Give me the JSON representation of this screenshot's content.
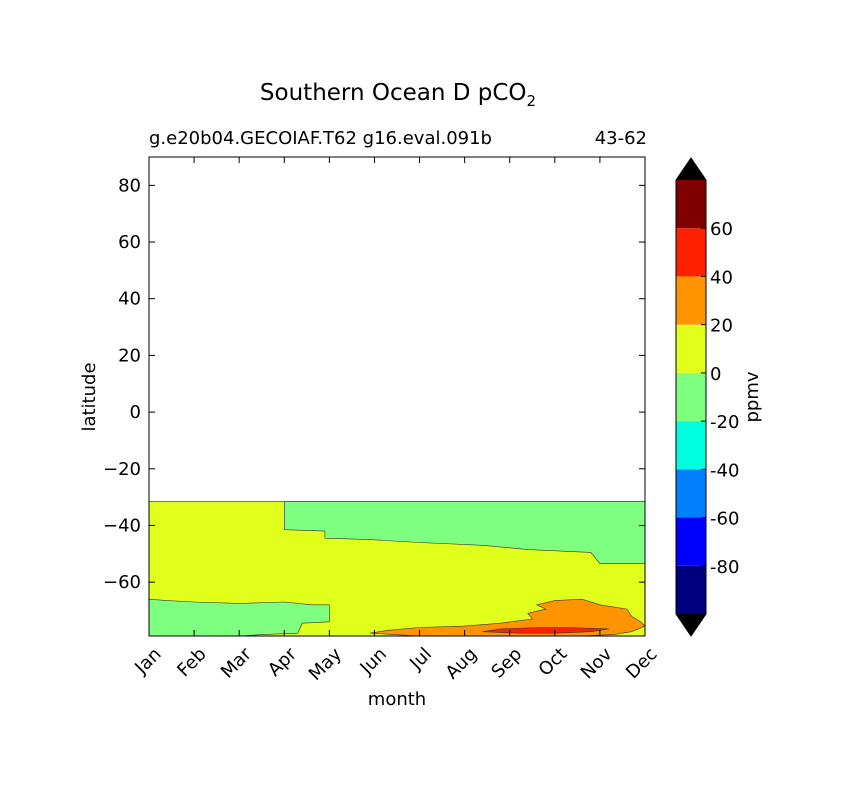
{
  "title_main": "Southern Ocean D pCO",
  "title_sub": "2",
  "subtitle_left": "g.e20b04.GECOIAF.T62 g16.eval.091b",
  "subtitle_right": "43-62",
  "chart_data": {
    "type": "heatmap",
    "xlabel": "month",
    "ylabel": "latitude",
    "x_categories": [
      "Jan",
      "Feb",
      "Mar",
      "Apr",
      "May",
      "Jun",
      "Jul",
      "Aug",
      "Sep",
      "Oct",
      "Nov",
      "Dec"
    ],
    "xlim": [
      1,
      12
    ],
    "ylim": [
      -79,
      90
    ],
    "y_ticks": [
      80,
      60,
      40,
      20,
      0,
      -20,
      -40,
      -60
    ],
    "y_tick_labels": [
      "80",
      "60",
      "40",
      "20",
      "0",
      "−20",
      "−40",
      "−60"
    ],
    "data_lat_max": -31.5,
    "colorbar": {
      "label": "ppmv",
      "levels": [
        -100,
        -80,
        -60,
        -40,
        -20,
        0,
        20,
        40,
        60,
        80
      ],
      "tick_labels": [
        "-80",
        "-60",
        "-40",
        "-20",
        "0",
        "20",
        "40",
        "60"
      ],
      "colors": [
        "#00007f",
        "#0000ff",
        "#007fff",
        "#00ffe0",
        "#7fff7f",
        "#e0ff1a",
        "#ff9400",
        "#ff2000",
        "#7f0000"
      ],
      "under_color": "#000000",
      "over_color": "#000000",
      "extend": "both"
    },
    "regions": [
      {
        "name": "positive-0-to-20",
        "range": [
          0,
          20
        ],
        "color": "#e0ff1a",
        "points": [
          [
            1,
            -31.5
          ],
          [
            12,
            -31.5
          ],
          [
            12,
            -79
          ],
          [
            1,
            -79
          ]
        ]
      },
      {
        "name": "negative-20-to-0-north",
        "range": [
          -20,
          0
        ],
        "color": "#7fff7f",
        "points": [
          [
            4.0,
            -31.5
          ],
          [
            12,
            -31.5
          ],
          [
            12,
            -53.5
          ],
          [
            11.0,
            -53.5
          ],
          [
            10.8,
            -49.5
          ],
          [
            9.4,
            -48.5
          ],
          [
            8.4,
            -47
          ],
          [
            7.0,
            -46
          ],
          [
            5.9,
            -45
          ],
          [
            4.9,
            -44.5
          ],
          [
            4.9,
            -42
          ],
          [
            4.0,
            -41.5
          ]
        ]
      },
      {
        "name": "negative-20-to-0-south",
        "range": [
          -20,
          0
        ],
        "color": "#7fff7f",
        "points": [
          [
            1,
            -66
          ],
          [
            1.4,
            -66.5
          ],
          [
            2.0,
            -67
          ],
          [
            3.0,
            -67.5
          ],
          [
            4.0,
            -67
          ],
          [
            4.6,
            -68
          ],
          [
            5.0,
            -68
          ],
          [
            5.0,
            -74
          ],
          [
            4.4,
            -74.5
          ],
          [
            4.3,
            -78
          ],
          [
            3.5,
            -78.5
          ],
          [
            3.0,
            -79
          ],
          [
            1,
            -79
          ]
        ]
      },
      {
        "name": "positive-20-to-40",
        "range": [
          20,
          40
        ],
        "color": "#ff9400",
        "points": [
          [
            5.9,
            -78
          ],
          [
            6.3,
            -77
          ],
          [
            7.0,
            -76
          ],
          [
            8.0,
            -75.5
          ],
          [
            8.8,
            -74.5
          ],
          [
            9.5,
            -73
          ],
          [
            9.4,
            -71
          ],
          [
            9.8,
            -69.5
          ],
          [
            9.6,
            -68
          ],
          [
            10.0,
            -66.5
          ],
          [
            10.6,
            -66
          ],
          [
            11.0,
            -68
          ],
          [
            11.6,
            -69.5
          ],
          [
            11.7,
            -72
          ],
          [
            11.9,
            -74
          ],
          [
            12,
            -75.5
          ],
          [
            11.7,
            -77.5
          ],
          [
            11.3,
            -78.5
          ],
          [
            10.5,
            -79
          ],
          [
            7.0,
            -79
          ]
        ]
      },
      {
        "name": "positive-40-to-60",
        "range": [
          40,
          60
        ],
        "color": "#ff2000",
        "points": [
          [
            8.4,
            -77.5
          ],
          [
            8.8,
            -76.5
          ],
          [
            9.6,
            -76
          ],
          [
            10.3,
            -76
          ],
          [
            11.2,
            -76.5
          ],
          [
            10.8,
            -77.5
          ],
          [
            10.0,
            -78
          ],
          [
            9.2,
            -78
          ]
        ]
      }
    ]
  }
}
